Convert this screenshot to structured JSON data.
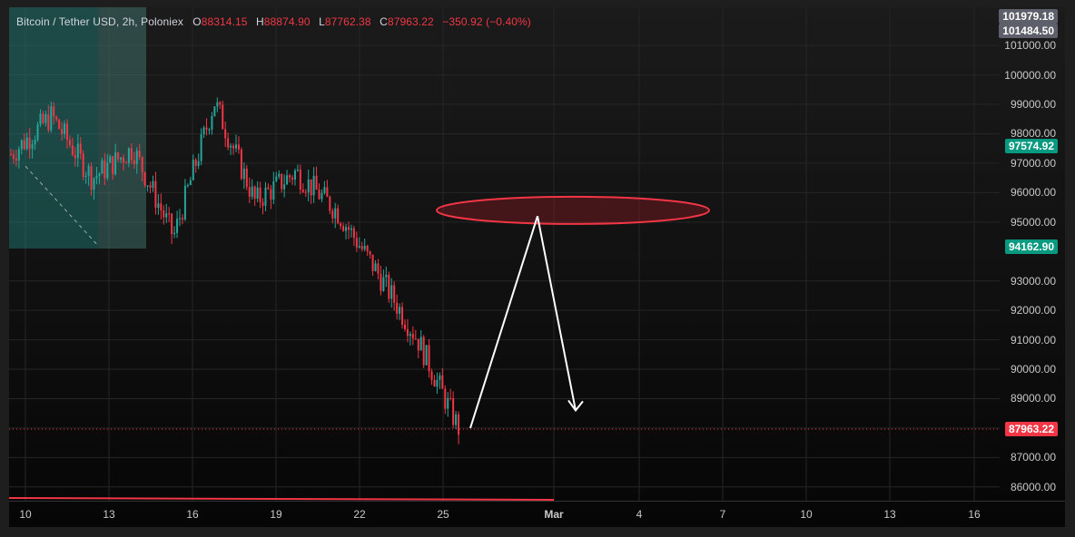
{
  "legend": {
    "symbol": "Bitcoin / Tether USD, 2h, Poloniex",
    "o_label": "O",
    "o_value": "88314.15",
    "h_label": "H",
    "h_value": "88874.90",
    "l_label": "L",
    "l_value": "87762.38",
    "c_label": "C",
    "c_value": "87963.22",
    "change": "−350.92 (−0.40%)"
  },
  "price_ticks": [
    "101000.00",
    "100000.00",
    "99000.00",
    "98000.00",
    "97000.00",
    "96000.00",
    "95000.00",
    "93000.00",
    "92000.00",
    "91000.00",
    "90000.00",
    "89000.00",
    "88000.00",
    "87000.00",
    "86000.00"
  ],
  "price_tags": {
    "top_partial": "101979.18",
    "top": "101484.50",
    "mid_green": "97574.92",
    "low_green": "94162.90",
    "last": "87963.22"
  },
  "time_labels": [
    "10",
    "13",
    "16",
    "19",
    "22",
    "25",
    "Mar",
    "4",
    "7",
    "10",
    "13",
    "16"
  ],
  "colors": {
    "up": "#26a69a",
    "down": "#f23645",
    "last_tag": "#f23645",
    "green_tag": "#089981",
    "gray_tag": "#5d606b"
  },
  "chart_data": {
    "type": "candlestick",
    "title": "Bitcoin / Tether USD, 2h, Poloniex",
    "ylim": [
      85500,
      102300
    ],
    "x_labels": [
      "10",
      "13",
      "16",
      "19",
      "22",
      "25",
      "Mar",
      "4",
      "7",
      "10",
      "13",
      "16"
    ],
    "trend_path": [
      97300,
      98600,
      96500,
      97500,
      94500,
      99100,
      95700,
      96700,
      95400,
      93300,
      91000,
      88000
    ],
    "last_price": 87963.22,
    "zone": {
      "price_low": 94950,
      "price_high": 95850
    },
    "projection": {
      "start": 88000,
      "peak": 95200,
      "end": 88600
    }
  }
}
